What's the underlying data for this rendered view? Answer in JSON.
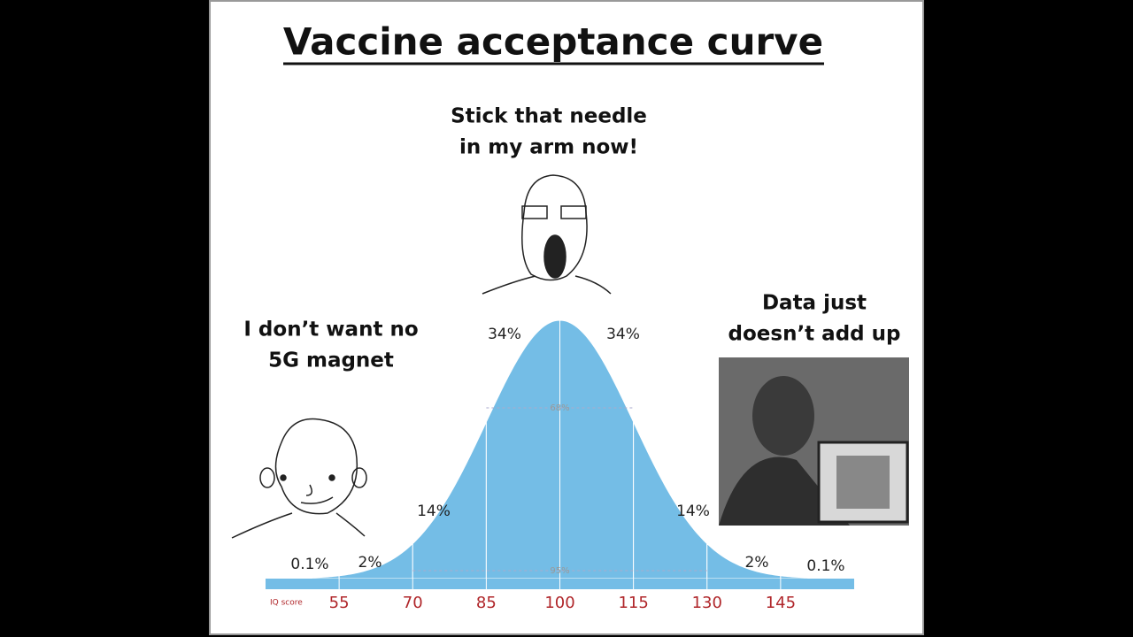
{
  "chart_data": {
    "type": "bell",
    "title": "Vaccine acceptance curve",
    "x_label": "IQ score",
    "xlim": [
      40,
      160
    ],
    "xticks": [
      55,
      70,
      85,
      100,
      115,
      130,
      145
    ],
    "values": [
      0.1,
      2,
      14,
      34,
      34,
      14,
      2,
      0.1
    ],
    "value_labels": [
      "0.1%",
      "2%",
      "14%",
      "34%",
      "34%",
      "14%",
      "2%",
      "0.1%"
    ],
    "color": "#74bde6",
    "spans": [
      {
        "value": 68,
        "label": "68%"
      },
      {
        "value": 95,
        "label": "95%"
      }
    ],
    "annotations": [
      [
        "Stick that needle",
        "in my arm now!"
      ],
      [
        "I don’t want no",
        "5G magnet"
      ],
      [
        "Data just",
        "doesn’t add up"
      ]
    ]
  }
}
